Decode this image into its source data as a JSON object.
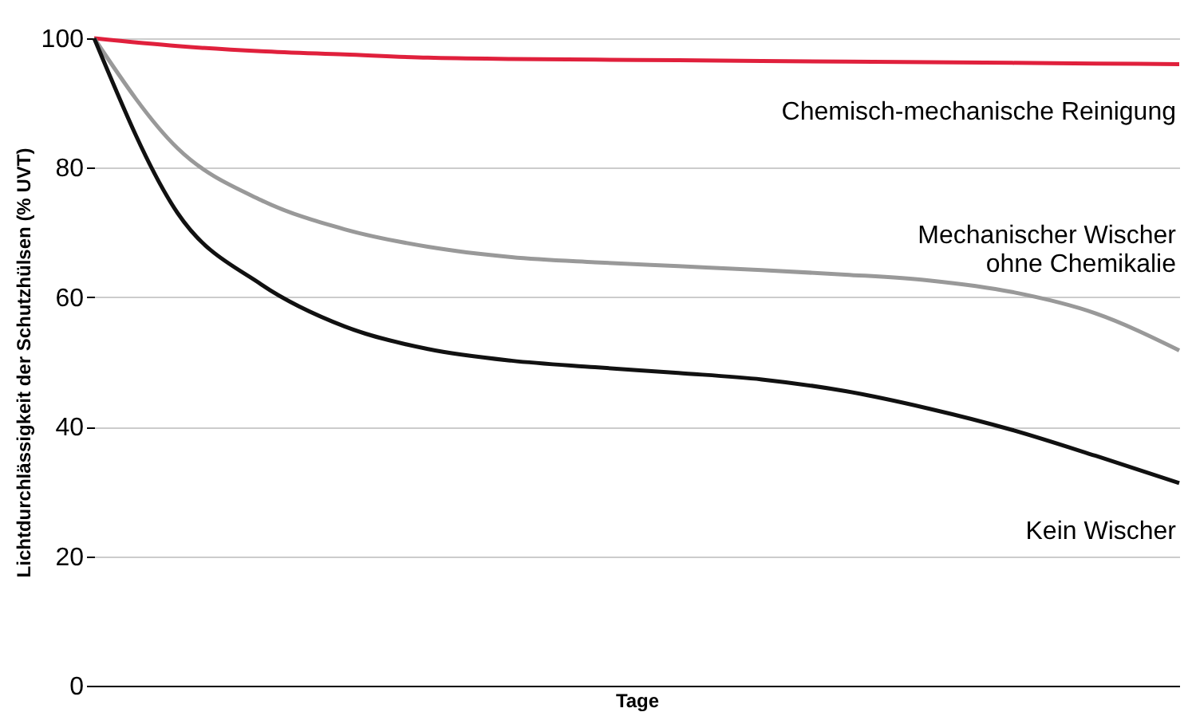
{
  "chart_data": {
    "type": "line",
    "xlabel": "Tage",
    "ylabel": "Lichtdurchlässigkeit der Schutzhülsen (% UVT)",
    "categories": [
      null,
      null,
      null,
      null,
      null,
      null,
      null,
      null,
      null,
      null,
      null,
      null,
      null,
      null
    ],
    "series": [
      {
        "name": "Chemisch-mechanische Reinigung",
        "color": "#e0203c",
        "values": [
          100,
          98.8,
          98,
          97.5,
          97,
          96.8,
          96.7,
          96.6,
          96.5,
          96.4,
          96.3,
          96.2,
          96.1,
          96.0
        ]
      },
      {
        "name": "Mechanischer Wischer\nohne Chemikalie",
        "color": "#999999",
        "values": [
          100,
          83,
          75,
          70.5,
          67.8,
          66.2,
          65.4,
          64.8,
          64.2,
          63.5,
          62.6,
          60.8,
          57.5,
          51.8
        ]
      },
      {
        "name": "Kein Wischer",
        "color": "#111111",
        "values": [
          100,
          73,
          62,
          55.5,
          52,
          50.2,
          49.2,
          48.3,
          47.3,
          45.5,
          42.8,
          39.5,
          35.5,
          31.3
        ]
      }
    ],
    "ylim": [
      0,
      100
    ],
    "yticks": [
      0,
      20,
      40,
      60,
      80,
      100
    ],
    "grid": "y",
    "tick_labels": "y",
    "marker": "none",
    "line_style": "solid"
  }
}
